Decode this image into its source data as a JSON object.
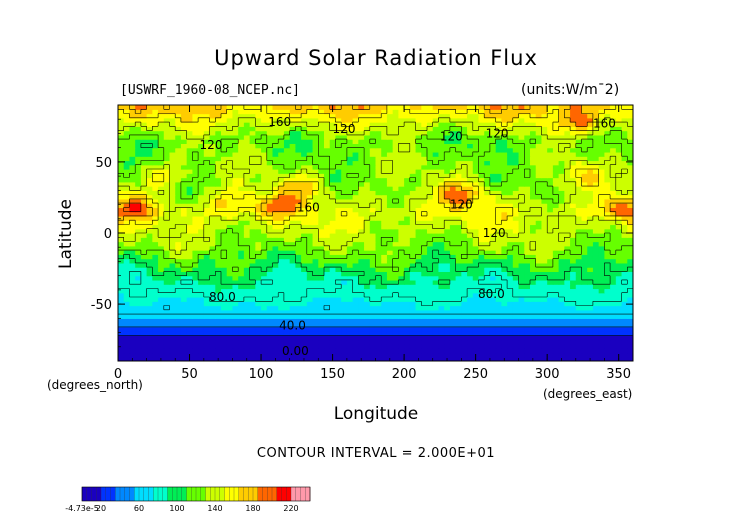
{
  "chart_data": {
    "type": "heatmap",
    "title": "Upward Solar Radiation Flux",
    "file_label": "[USWRF_1960-08_NCEP.nc]",
    "units_label": "(units:W/m¯2)",
    "xlabel": "Longitude",
    "ylabel": "Latitude",
    "x_units_label": "(degrees_north)",
    "y_units_label": "(degrees_east)",
    "contour_interval_label": "CONTOUR INTERVAL = 2.000E+01",
    "xlim": [
      0,
      360
    ],
    "ylim": [
      -90,
      90
    ],
    "x_ticks": [
      0,
      50,
      100,
      150,
      200,
      250,
      300,
      350
    ],
    "y_ticks": [
      -50,
      0,
      50
    ],
    "contour_labels": [
      {
        "text": "160",
        "lon": 113,
        "lat": 78
      },
      {
        "text": "120",
        "lon": 158,
        "lat": 73
      },
      {
        "text": "120",
        "lon": 65,
        "lat": 62
      },
      {
        "text": "120",
        "lon": 233,
        "lat": 68
      },
      {
        "text": "120",
        "lon": 265,
        "lat": 70
      },
      {
        "text": "160",
        "lon": 340,
        "lat": 77
      },
      {
        "text": "160",
        "lon": 133,
        "lat": 18
      },
      {
        "text": "120",
        "lon": 240,
        "lat": 20
      },
      {
        "text": "120",
        "lon": 263,
        "lat": 0
      },
      {
        "text": "80.0",
        "lon": 73,
        "lat": -45
      },
      {
        "text": "80.0",
        "lon": 261,
        "lat": -43
      },
      {
        "text": "40.0",
        "lon": 122,
        "lat": -65
      },
      {
        "text": "0.00",
        "lon": 124,
        "lat": -83
      }
    ],
    "latitude_profile": [
      {
        "lat": -90,
        "value": 0
      },
      {
        "lat": -75,
        "value": 10
      },
      {
        "lat": -67,
        "value": 30
      },
      {
        "lat": -62,
        "value": 50
      },
      {
        "lat": -55,
        "value": 65
      },
      {
        "lat": -45,
        "value": 80
      },
      {
        "lat": -30,
        "value": 95
      },
      {
        "lat": -20,
        "value": 110
      },
      {
        "lat": -10,
        "value": 125
      },
      {
        "lat": 0,
        "value": 135
      },
      {
        "lat": 15,
        "value": 150
      },
      {
        "lat": 30,
        "value": 130
      },
      {
        "lat": 50,
        "value": 125
      },
      {
        "lat": 65,
        "value": 120
      },
      {
        "lat": 75,
        "value": 140
      },
      {
        "lat": 90,
        "value": 175
      }
    ],
    "hotspots": [
      {
        "lon": 12,
        "lat": 18,
        "value": 185
      },
      {
        "lon": 80,
        "lat": 22,
        "value": 175
      },
      {
        "lon": 110,
        "lat": 20,
        "value": 185
      },
      {
        "lon": 128,
        "lat": 32,
        "value": 170
      },
      {
        "lon": 240,
        "lat": 28,
        "value": 190
      },
      {
        "lon": 350,
        "lat": 18,
        "value": 185
      },
      {
        "lon": 325,
        "lat": 40,
        "value": 165
      },
      {
        "lon": 325,
        "lat": 78,
        "value": 190
      },
      {
        "lon": 30,
        "lat": 40,
        "value": 160
      }
    ],
    "colorbar": {
      "tick_labels": [
        "-4.73e-5",
        "20",
        "60",
        "100",
        "140",
        "180",
        "220"
      ],
      "tick_values": [
        0,
        20,
        60,
        100,
        140,
        180,
        220
      ],
      "range": [
        0,
        240
      ],
      "colors": [
        "#1a00c0",
        "#0033ff",
        "#0088ff",
        "#00ddff",
        "#00ffcc",
        "#00ee55",
        "#66ff00",
        "#ccff00",
        "#ffff00",
        "#ffcc00",
        "#ff6600",
        "#ff0000",
        "#ff99aa"
      ]
    }
  }
}
